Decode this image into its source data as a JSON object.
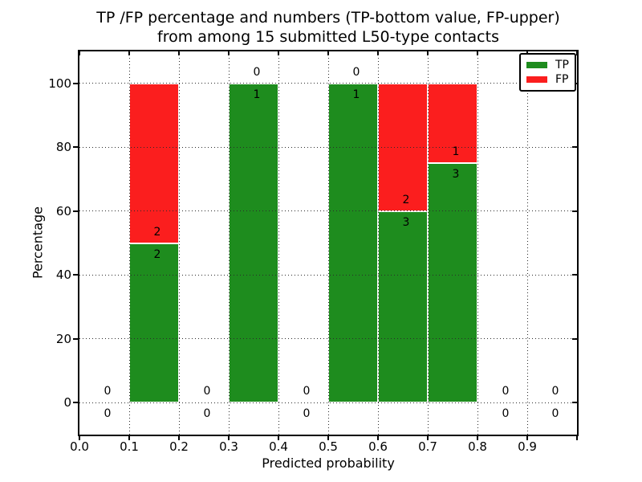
{
  "title": {
    "line1": "TP /FP percentage and numbers (TP-bottom value, FP-upper)",
    "line2": "from among 15 submitted L50-type contacts"
  },
  "chart_data": {
    "type": "bar",
    "stacked": true,
    "title": "TP /FP percentage and numbers (TP-bottom value, FP-upper)\nfrom among 15 submitted L50-type contacts",
    "xlabel": "Predicted probability",
    "ylabel": "Percentage",
    "xlim": [
      0.0,
      1.0
    ],
    "ylim": [
      -10,
      110
    ],
    "grid": {
      "style": "dotted",
      "color": "#2b2b2b"
    },
    "x_ticks": [
      {
        "value": 0.0,
        "label": "0.0"
      },
      {
        "value": 0.1,
        "label": "0.1"
      },
      {
        "value": 0.2,
        "label": "0.2"
      },
      {
        "value": 0.3,
        "label": "0.3"
      },
      {
        "value": 0.4,
        "label": "0.4"
      },
      {
        "value": 0.5,
        "label": "0.5"
      },
      {
        "value": 0.6,
        "label": "0.6"
      },
      {
        "value": 0.7,
        "label": "0.7"
      },
      {
        "value": 0.8,
        "label": "0.8"
      },
      {
        "value": 0.9,
        "label": "0.9"
      },
      {
        "value": 1.0,
        "label": ""
      }
    ],
    "y_ticks": [
      {
        "value": 0,
        "label": "0"
      },
      {
        "value": 20,
        "label": "20"
      },
      {
        "value": 40,
        "label": "40"
      },
      {
        "value": 60,
        "label": "60"
      },
      {
        "value": 80,
        "label": "80"
      },
      {
        "value": 100,
        "label": "100"
      }
    ],
    "series_names": [
      "TP",
      "FP"
    ],
    "bins": [
      {
        "x0": 0.0,
        "x1": 0.1,
        "tp_count": 0,
        "fp_count": 0,
        "tp_pct": 0,
        "fp_pct": 0
      },
      {
        "x0": 0.1,
        "x1": 0.2,
        "tp_count": 2,
        "fp_count": 2,
        "tp_pct": 50,
        "fp_pct": 50
      },
      {
        "x0": 0.2,
        "x1": 0.3,
        "tp_count": 0,
        "fp_count": 0,
        "tp_pct": 0,
        "fp_pct": 0
      },
      {
        "x0": 0.3,
        "x1": 0.4,
        "tp_count": 1,
        "fp_count": 0,
        "tp_pct": 100,
        "fp_pct": 0
      },
      {
        "x0": 0.4,
        "x1": 0.5,
        "tp_count": 0,
        "fp_count": 0,
        "tp_pct": 0,
        "fp_pct": 0
      },
      {
        "x0": 0.5,
        "x1": 0.6,
        "tp_count": 1,
        "fp_count": 0,
        "tp_pct": 100,
        "fp_pct": 0
      },
      {
        "x0": 0.6,
        "x1": 0.7,
        "tp_count": 3,
        "fp_count": 2,
        "tp_pct": 60,
        "fp_pct": 40
      },
      {
        "x0": 0.7,
        "x1": 0.8,
        "tp_count": 3,
        "fp_count": 1,
        "tp_pct": 75,
        "fp_pct": 25
      },
      {
        "x0": 0.8,
        "x1": 0.9,
        "tp_count": 0,
        "fp_count": 0,
        "tp_pct": 0,
        "fp_pct": 0
      },
      {
        "x0": 0.9,
        "x1": 1.0,
        "tp_count": 0,
        "fp_count": 0,
        "tp_pct": 0,
        "fp_pct": 0
      }
    ],
    "legend": {
      "position": "upper right",
      "items": [
        {
          "label": "TP",
          "color": "#1e8c1e"
        },
        {
          "label": "FP",
          "color": "#fb1e1e"
        }
      ]
    }
  },
  "colors": {
    "background": "#ffffff",
    "axes": "#000000",
    "tp": "#1e8c1e",
    "fp": "#fb1e1e"
  }
}
